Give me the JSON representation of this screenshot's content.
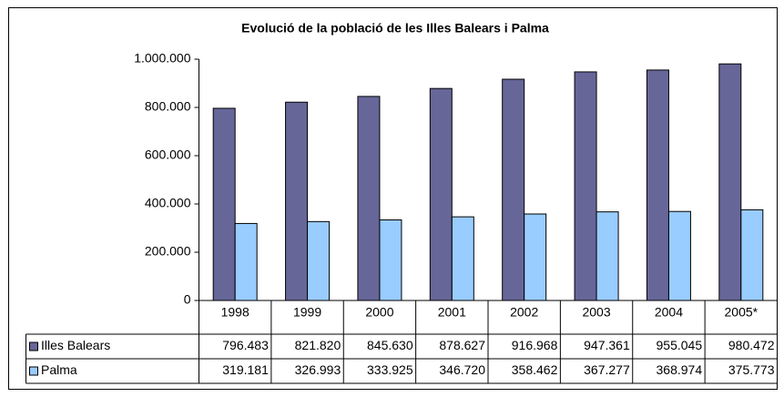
{
  "chart_data": {
    "type": "bar",
    "title": "Evolució de la població de les Illes Balears i Palma",
    "categories": [
      "1998",
      "1999",
      "2000",
      "2001",
      "2002",
      "2003",
      "2004",
      "2005*"
    ],
    "series": [
      {
        "name": "Illes Balears",
        "color": "#666699",
        "values": [
          796483,
          821820,
          845630,
          878627,
          916968,
          947361,
          955045,
          980472
        ],
        "value_labels": [
          "796.483",
          "821.820",
          "845.630",
          "878.627",
          "916.968",
          "947.361",
          "955.045",
          "980.472"
        ]
      },
      {
        "name": "Palma",
        "color": "#99ccff",
        "values": [
          319181,
          326993,
          333925,
          346720,
          358462,
          367277,
          368974,
          375773
        ],
        "value_labels": [
          "319.181",
          "326.993",
          "333.925",
          "346.720",
          "358.462",
          "367.277",
          "368.974",
          "375.773"
        ]
      }
    ],
    "ylim": [
      0,
      1000000
    ],
    "yticks": [
      0,
      {
        "value": 200000,
        "label": "200.000"
      },
      {
        "value": 400000,
        "label": "400.000"
      },
      {
        "value": 600000,
        "label": "600.000"
      },
      {
        "value": 800000,
        "label": "800.000"
      },
      {
        "value": 1000000,
        "label": "1.000.000"
      }
    ],
    "grid": false
  }
}
